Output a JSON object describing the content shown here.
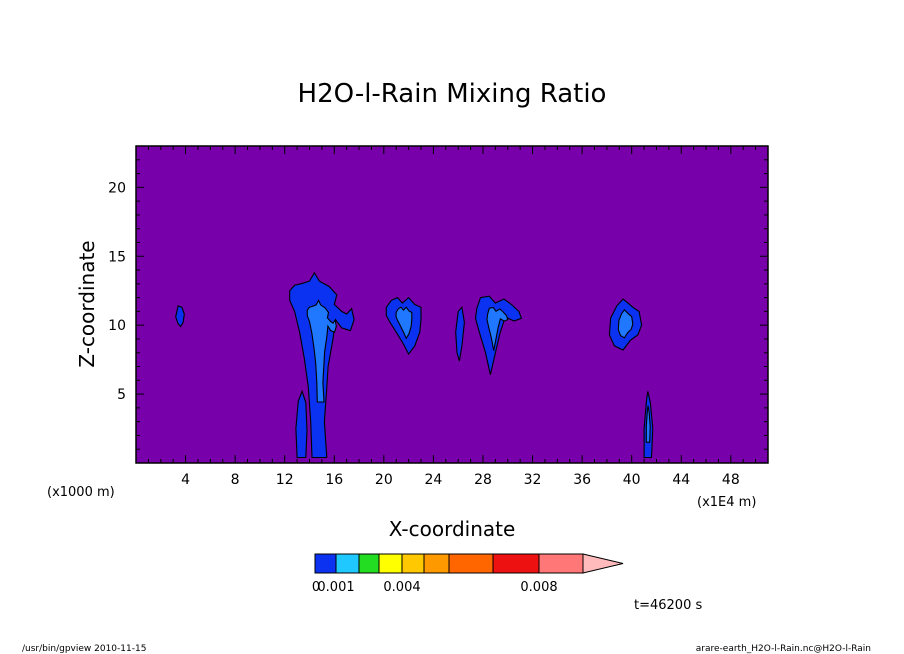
{
  "chart_data": {
    "type": "contour",
    "title": "H2O-l-Rain Mixing Ratio",
    "xlabel": "X-coordinate",
    "ylabel": "Z-coordinate",
    "x_scale_note": "(x1E4 m)",
    "y_scale_note": "(x1000 m)",
    "xlim": [
      0,
      51
    ],
    "ylim": [
      0,
      23
    ],
    "x_ticks": [
      4,
      8,
      12,
      16,
      20,
      24,
      28,
      32,
      36,
      40,
      44,
      48
    ],
    "y_ticks": [
      5,
      10,
      15,
      20
    ],
    "background_color": "#7700aa",
    "contour_levels": [
      0.001,
      0.002,
      0.003,
      0.004,
      0.005,
      0.006,
      0.007,
      0.008,
      0.009
    ],
    "cells": [
      {
        "name": "cell-x4",
        "level_colors": [
          "#0b32f0"
        ],
        "outline": [
          [
            3.2,
            10.6
          ],
          [
            3.4,
            11.4
          ],
          [
            3.7,
            11.3
          ],
          [
            3.9,
            10.8
          ],
          [
            3.8,
            10.2
          ],
          [
            3.6,
            9.9
          ],
          [
            3.4,
            10.1
          ]
        ]
      },
      {
        "name": "cell-x14",
        "level_colors": [
          "#0b32f0",
          "#1f78ff"
        ],
        "outline": [
          [
            12.4,
            12.5
          ],
          [
            12.8,
            12.9
          ],
          [
            13.3,
            13.0
          ],
          [
            14.0,
            13.2
          ],
          [
            14.4,
            13.8
          ],
          [
            14.8,
            13.2
          ],
          [
            15.6,
            12.8
          ],
          [
            16.2,
            12.2
          ],
          [
            16.0,
            11.5
          ],
          [
            16.6,
            11.0
          ],
          [
            17.0,
            10.8
          ],
          [
            17.4,
            11.2
          ],
          [
            17.6,
            10.4
          ],
          [
            17.3,
            9.6
          ],
          [
            16.6,
            9.8
          ],
          [
            16.1,
            10.4
          ],
          [
            15.9,
            9.0
          ],
          [
            15.5,
            7.0
          ],
          [
            15.4,
            5.5
          ],
          [
            15.2,
            3.0
          ],
          [
            15.4,
            0.4
          ],
          [
            14.2,
            0.4
          ],
          [
            14.1,
            3.0
          ],
          [
            13.9,
            5.5
          ],
          [
            13.6,
            7.5
          ],
          [
            13.2,
            9.5
          ],
          [
            12.8,
            11.0
          ],
          [
            12.4,
            11.8
          ]
        ]
      },
      {
        "name": "cell-x13-low",
        "level_colors": [
          "#0b32f0"
        ],
        "outline": [
          [
            13.0,
            0.4
          ],
          [
            12.9,
            2.5
          ],
          [
            13.1,
            4.5
          ],
          [
            13.4,
            5.2
          ],
          [
            13.7,
            4.4
          ],
          [
            13.8,
            2.4
          ],
          [
            13.7,
            0.4
          ]
        ]
      },
      {
        "name": "cell-x21",
        "level_colors": [
          "#0b32f0",
          "#1f78ff"
        ],
        "outline": [
          [
            20.2,
            11.3
          ],
          [
            20.6,
            11.8
          ],
          [
            21.1,
            12.0
          ],
          [
            21.5,
            11.6
          ],
          [
            22.0,
            12.0
          ],
          [
            22.5,
            11.5
          ],
          [
            23.0,
            11.3
          ],
          [
            23.0,
            10.4
          ],
          [
            22.9,
            9.5
          ],
          [
            22.5,
            8.5
          ],
          [
            22.0,
            7.9
          ],
          [
            21.6,
            8.6
          ],
          [
            21.0,
            9.5
          ],
          [
            20.5,
            10.2
          ],
          [
            20.2,
            10.7
          ]
        ]
      },
      {
        "name": "cell-x26",
        "level_colors": [
          "#0b32f0"
        ],
        "outline": [
          [
            25.8,
            9.5
          ],
          [
            26.0,
            11.0
          ],
          [
            26.3,
            11.3
          ],
          [
            26.5,
            10.2
          ],
          [
            26.3,
            8.5
          ],
          [
            26.1,
            7.4
          ],
          [
            25.9,
            8.0
          ]
        ]
      },
      {
        "name": "cell-x29",
        "level_colors": [
          "#0b32f0",
          "#1f78ff"
        ],
        "outline": [
          [
            27.5,
            11.2
          ],
          [
            27.8,
            12.0
          ],
          [
            28.5,
            12.1
          ],
          [
            29.0,
            11.6
          ],
          [
            29.7,
            11.9
          ],
          [
            30.3,
            11.5
          ],
          [
            30.9,
            11.0
          ],
          [
            31.1,
            10.5
          ],
          [
            30.5,
            10.3
          ],
          [
            29.8,
            10.6
          ],
          [
            29.4,
            9.5
          ],
          [
            29.0,
            8.0
          ],
          [
            28.6,
            6.4
          ],
          [
            28.2,
            8.0
          ],
          [
            27.7,
            9.5
          ],
          [
            27.4,
            10.5
          ]
        ]
      },
      {
        "name": "cell-x39",
        "level_colors": [
          "#0b32f0",
          "#1f78ff"
        ],
        "outline": [
          [
            38.3,
            10.5
          ],
          [
            38.8,
            11.4
          ],
          [
            39.3,
            11.9
          ],
          [
            39.7,
            11.6
          ],
          [
            40.1,
            11.3
          ],
          [
            40.6,
            11.0
          ],
          [
            40.8,
            10.0
          ],
          [
            40.5,
            9.3
          ],
          [
            39.9,
            8.9
          ],
          [
            39.3,
            8.2
          ],
          [
            38.6,
            8.5
          ],
          [
            38.2,
            9.3
          ]
        ]
      },
      {
        "name": "cell-x41",
        "level_colors": [
          "#0b32f0",
          "#1f78ff"
        ],
        "outline": [
          [
            41.0,
            0.4
          ],
          [
            41.0,
            2.5
          ],
          [
            41.2,
            4.6
          ],
          [
            41.3,
            5.2
          ],
          [
            41.5,
            4.4
          ],
          [
            41.7,
            2.5
          ],
          [
            41.6,
            0.4
          ]
        ]
      }
    ],
    "colorbar": {
      "colors": [
        "#0b32f0",
        "#1fc8ff",
        "#22dd22",
        "#ffff00",
        "#ffc800",
        "#ff9900",
        "#ff6600",
        "#ee1111",
        "#ff7777",
        "#ffbbbb"
      ],
      "labels": [
        "0.001",
        "0.004",
        "0.008"
      ],
      "label_positions": [
        0.001,
        0.004,
        0.008
      ],
      "min_label": "0",
      "level_bounds": [
        0.0,
        0.001,
        0.002,
        0.003,
        0.004,
        0.005,
        0.006,
        0.007,
        0.008,
        0.009
      ]
    },
    "time_label": "t=46200 s"
  },
  "footer": {
    "left": "/usr/bin/gpview   2010-11-15",
    "right": "arare-earth_H2O-l-Rain.nc@H2O-l-Rain"
  }
}
